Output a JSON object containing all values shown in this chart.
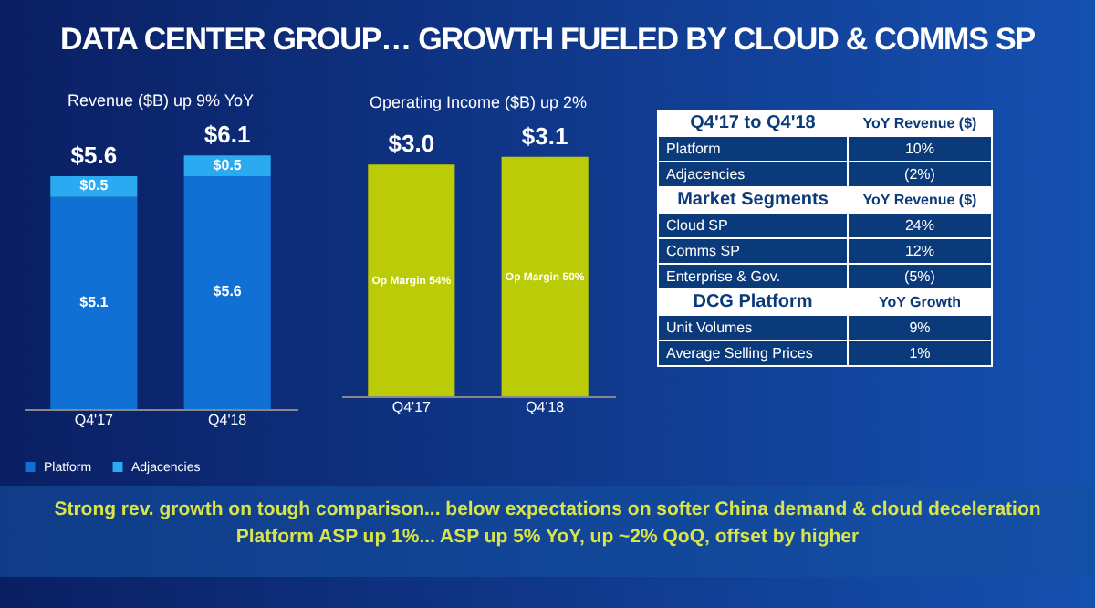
{
  "chart_data": [
    {
      "type": "bar",
      "title": "DATA CENTER GROUP… GROWTH FUELED BY CLOUD & COMMS SP",
      "subtitle": "Revenue ($B) up 9% YoY",
      "categories": [
        "Q4'17",
        "Q4'18"
      ],
      "stacked": true,
      "legend": "bottom",
      "tick_labels": "x",
      "series": [
        {
          "name": "Platform",
          "color": "#1170d4",
          "values": [
            5.1,
            5.6
          ],
          "value_labels": [
            "$5.1",
            "$5.6"
          ]
        },
        {
          "name": "Adjacencies",
          "color": "#2aaaf0",
          "values": [
            0.5,
            0.5
          ],
          "value_labels": [
            "$0.5",
            "$0.5"
          ]
        }
      ],
      "totals": [
        "$5.6",
        "$6.1"
      ],
      "annotations": [
        "Strong rev. growth on tough comparison... below expectations on softer China demand & cloud deceleration",
        "Platform ASP up 1%... ASP up 5% YoY,  up ~2% QoQ, offset by higher"
      ]
    },
    {
      "type": "bar",
      "title": "Operating Income ($B) up 2%",
      "categories": [
        "Q4'17",
        "Q4'18"
      ],
      "tick_labels": "x",
      "series": [
        {
          "color": "#bccb08",
          "values": [
            3.0,
            3.1
          ],
          "value_labels": [
            "$3.0",
            "$3.1"
          ]
        }
      ],
      "annotations": [
        "Op Margin 54%",
        "Op Margin 50%"
      ]
    },
    {
      "type": "other",
      "annotations": [
        "Q4'17 to Q4'18",
        "YoY Revenue ($)",
        "Platform",
        "10%",
        "Adjacencies",
        "(2%)",
        "Market Segments",
        "YoY Revenue ($)",
        "Cloud SP",
        "24%",
        "Comms SP",
        "12%",
        "Enterprise & Gov.",
        "(5%)",
        "DCG Platform",
        "YoY Growth",
        "Unit Volumes",
        "9%",
        "Average Selling Prices",
        "1%"
      ]
    }
  ]
}
